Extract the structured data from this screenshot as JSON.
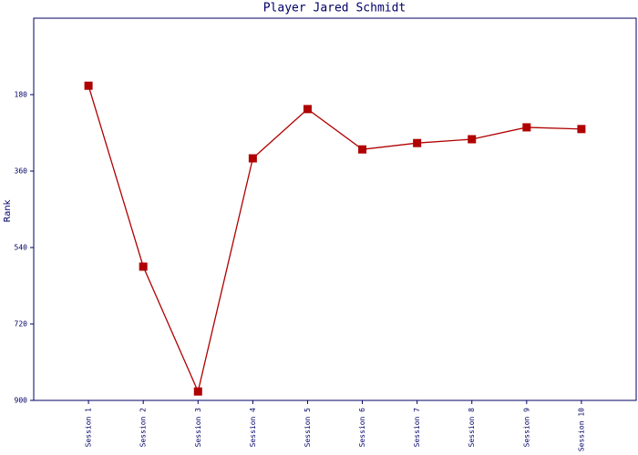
{
  "chart_data": {
    "type": "line",
    "title": "Player Jared Schmidt",
    "y_label": "Rank",
    "categories": [
      "Session 1",
      "Session 2",
      "Session 3",
      "Session 4",
      "Session 5",
      "Session 6",
      "Session 7",
      "Session 8",
      "Session 9",
      "Session 10"
    ],
    "series": [
      {
        "name": "Rank",
        "color": "#b00000",
        "values": [
          159,
          585,
          879,
          330,
          214,
          309,
          294,
          285,
          257,
          261
        ]
      }
    ],
    "ylim": [
      900,
      0
    ],
    "yticks": [
      180,
      360,
      540,
      720,
      900
    ],
    "grid": false
  }
}
